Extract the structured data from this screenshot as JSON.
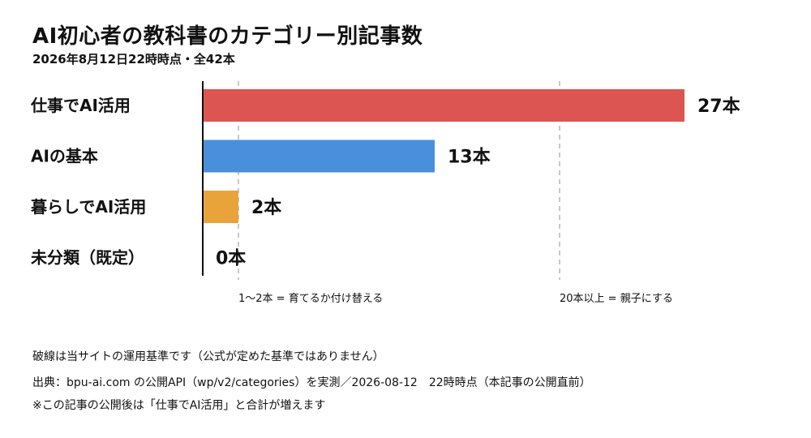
{
  "title": "AI初心者の教科書のカテゴリー別記事数",
  "subtitle": "2026年8月12日22時時点・全42本",
  "chart_data": {
    "type": "bar",
    "orientation": "horizontal",
    "categories": [
      "仕事でAI活用",
      "AIの基本",
      "暮らしでAI活用",
      "未分類（既定）"
    ],
    "values": [
      27,
      13,
      2,
      0
    ],
    "value_labels": [
      "27本",
      "13本",
      "2本",
      "0本"
    ],
    "colors": [
      "#dc5550",
      "#4a8fdb",
      "#e8a43a",
      "#9e9e9e"
    ],
    "xlim": [
      0,
      27
    ],
    "reference_lines": [
      {
        "value": 2,
        "label": "1～2本 = 育てるか付け替える"
      },
      {
        "value": 20,
        "label": "20本以上 = 親子にする"
      }
    ]
  },
  "notes": {
    "legend_note": "破線は当サイトの運用基準です（公式が定めた基準ではありません）",
    "source": "出典：bpu-ai.com の公開API（wp/v2/categories）を実測／2026-08-12　22時時点（本記事の公開直前）",
    "footnote": "※この記事の公開後は「仕事でAI活用」と合計が増えます"
  }
}
